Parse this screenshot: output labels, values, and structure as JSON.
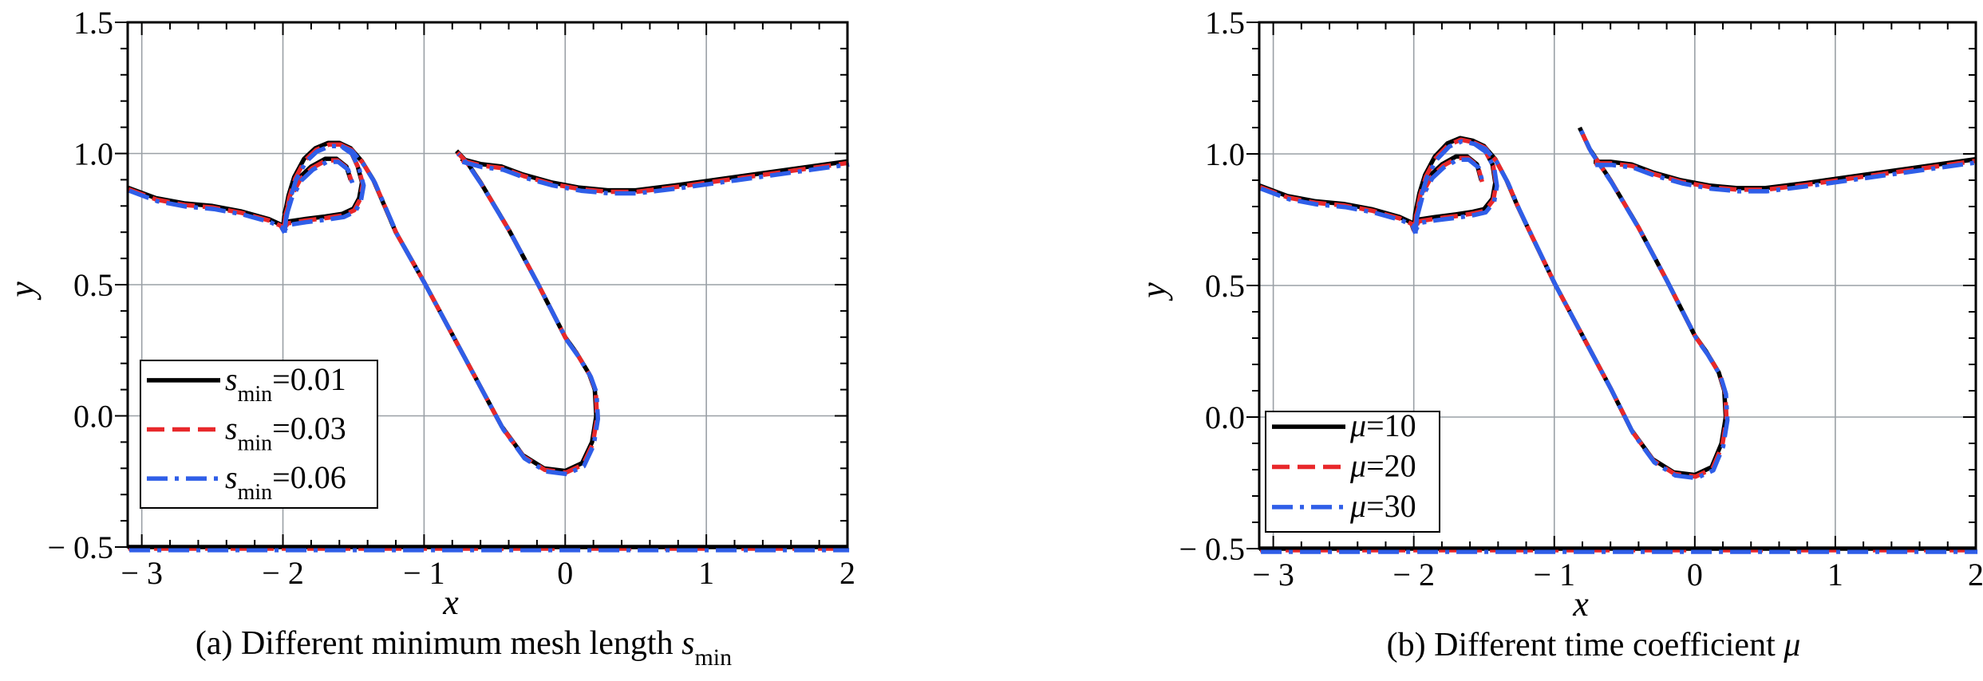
{
  "chart_data": [
    {
      "type": "line",
      "panel": "a",
      "caption_prefix": "(a) Different minimum mesh length ",
      "caption_symbol": "s",
      "caption_subscript": "min",
      "xlabel": "x",
      "ylabel": "y",
      "xlim": [
        -3.1,
        2.0
      ],
      "ylim": [
        -0.5,
        1.5
      ],
      "xticks": [
        -3,
        -2,
        -1,
        0,
        1,
        2
      ],
      "xtick_labels": [
        "− 3",
        "− 2",
        "− 1",
        "0",
        "1",
        "2"
      ],
      "yticks": [
        -0.5,
        0.0,
        0.5,
        1.0,
        1.5
      ],
      "ytick_labels": [
        "− 0.5",
        "0.0",
        "0.5",
        "1.0",
        "1.5"
      ],
      "grid": true,
      "legend_position": "lower-left",
      "series": [
        {
          "name_symbol": "s",
          "name_sub": "min",
          "name_value": "=0.01",
          "color": "#000000",
          "style": "solid"
        },
        {
          "name_symbol": "s",
          "name_sub": "min",
          "name_value": "=0.03",
          "color": "#e8282b",
          "style": "dash"
        },
        {
          "name_symbol": "s",
          "name_sub": "min",
          "name_value": "=0.06",
          "color": "#2f5ee8",
          "style": "dashdot"
        }
      ],
      "curves": {
        "surface_main": [
          [
            -3.1,
            0.87
          ],
          [
            -2.9,
            0.83
          ],
          [
            -2.7,
            0.81
          ],
          [
            -2.5,
            0.8
          ],
          [
            -2.3,
            0.78
          ],
          [
            -2.1,
            0.75
          ],
          [
            -2.02,
            0.73
          ],
          [
            -2.0,
            0.71
          ]
        ],
        "loop_outer": [
          [
            -2.0,
            0.71
          ],
          [
            -1.99,
            0.76
          ],
          [
            -1.96,
            0.84
          ],
          [
            -1.92,
            0.91
          ],
          [
            -1.85,
            0.98
          ],
          [
            -1.77,
            1.02
          ],
          [
            -1.68,
            1.04
          ],
          [
            -1.6,
            1.04
          ],
          [
            -1.52,
            1.01
          ],
          [
            -1.47,
            0.95
          ],
          [
            -1.44,
            0.89
          ],
          [
            -1.46,
            0.83
          ],
          [
            -1.5,
            0.79
          ],
          [
            -1.58,
            0.77
          ],
          [
            -1.7,
            0.76
          ],
          [
            -1.85,
            0.75
          ],
          [
            -1.97,
            0.74
          ],
          [
            -2.0,
            0.72
          ]
        ],
        "loop_inner": [
          [
            -1.99,
            0.77
          ],
          [
            -1.95,
            0.84
          ],
          [
            -1.88,
            0.91
          ],
          [
            -1.8,
            0.95
          ],
          [
            -1.7,
            0.98
          ],
          [
            -1.62,
            0.98
          ],
          [
            -1.55,
            0.95
          ],
          [
            -1.52,
            0.9
          ]
        ],
        "jet": [
          [
            -1.6,
            1.04
          ],
          [
            -1.52,
            1.02
          ],
          [
            -1.44,
            0.97
          ],
          [
            -1.36,
            0.9
          ],
          [
            -1.28,
            0.8
          ],
          [
            -1.2,
            0.7
          ],
          [
            -1.0,
            0.51
          ],
          [
            -0.8,
            0.31
          ],
          [
            -0.6,
            0.11
          ],
          [
            -0.45,
            -0.04
          ],
          [
            -0.3,
            -0.15
          ],
          [
            -0.15,
            -0.2
          ],
          [
            0.0,
            -0.21
          ],
          [
            0.12,
            -0.18
          ],
          [
            0.19,
            -0.1
          ],
          [
            0.22,
            0.0
          ],
          [
            0.21,
            0.1
          ],
          [
            0.17,
            0.16
          ],
          [
            0.08,
            0.24
          ],
          [
            0.0,
            0.3
          ],
          [
            -0.2,
            0.51
          ],
          [
            -0.4,
            0.71
          ],
          [
            -0.6,
            0.89
          ],
          [
            -0.7,
            0.97
          ],
          [
            -0.77,
            1.01
          ]
        ],
        "surface_right": [
          [
            -0.74,
            0.98
          ],
          [
            -0.6,
            0.96
          ],
          [
            -0.45,
            0.95
          ],
          [
            -0.3,
            0.92
          ],
          [
            -0.1,
            0.89
          ],
          [
            0.1,
            0.87
          ],
          [
            0.3,
            0.86
          ],
          [
            0.5,
            0.86
          ],
          [
            0.8,
            0.88
          ],
          [
            1.2,
            0.91
          ],
          [
            1.6,
            0.94
          ],
          [
            2.0,
            0.97
          ]
        ],
        "bottom": [
          [
            -3.1,
            -0.5
          ],
          [
            2.0,
            -0.5
          ]
        ]
      }
    },
    {
      "type": "line",
      "panel": "b",
      "caption_prefix": "(b) Different time coefficient ",
      "caption_symbol": "μ",
      "caption_subscript": "",
      "xlabel": "x",
      "ylabel": "y",
      "xlim": [
        -3.1,
        2.0
      ],
      "ylim": [
        -0.5,
        1.5
      ],
      "xticks": [
        -3,
        -2,
        -1,
        0,
        1,
        2
      ],
      "xtick_labels": [
        "− 3",
        "− 2",
        "− 1",
        "0",
        "1",
        "2"
      ],
      "yticks": [
        -0.5,
        0.0,
        0.5,
        1.0,
        1.5
      ],
      "ytick_labels": [
        "− 0.5",
        "0.0",
        "0.5",
        "1.0",
        "1.5"
      ],
      "grid": true,
      "legend_position": "lower-left",
      "series": [
        {
          "name_symbol": "μ",
          "name_sub": "",
          "name_value": "=10",
          "color": "#000000",
          "style": "solid"
        },
        {
          "name_symbol": "μ",
          "name_sub": "",
          "name_value": "=20",
          "color": "#e8282b",
          "style": "dash"
        },
        {
          "name_symbol": "μ",
          "name_sub": "",
          "name_value": "=30",
          "color": "#2f5ee8",
          "style": "dashdot"
        }
      ],
      "curves": {
        "surface_main": [
          [
            -3.1,
            0.88
          ],
          [
            -2.9,
            0.84
          ],
          [
            -2.7,
            0.82
          ],
          [
            -2.5,
            0.81
          ],
          [
            -2.3,
            0.79
          ],
          [
            -2.1,
            0.76
          ],
          [
            -2.02,
            0.74
          ],
          [
            -2.0,
            0.71
          ]
        ],
        "loop_outer": [
          [
            -2.0,
            0.71
          ],
          [
            -1.99,
            0.77
          ],
          [
            -1.96,
            0.85
          ],
          [
            -1.92,
            0.92
          ],
          [
            -1.85,
            0.99
          ],
          [
            -1.76,
            1.04
          ],
          [
            -1.67,
            1.06
          ],
          [
            -1.58,
            1.05
          ],
          [
            -1.5,
            1.02
          ],
          [
            -1.44,
            0.96
          ],
          [
            -1.42,
            0.89
          ],
          [
            -1.44,
            0.83
          ],
          [
            -1.5,
            0.79
          ],
          [
            -1.58,
            0.78
          ],
          [
            -1.7,
            0.77
          ],
          [
            -1.85,
            0.76
          ],
          [
            -1.97,
            0.75
          ],
          [
            -2.0,
            0.72
          ]
        ],
        "loop_inner": [
          [
            -1.99,
            0.77
          ],
          [
            -1.95,
            0.85
          ],
          [
            -1.88,
            0.92
          ],
          [
            -1.8,
            0.96
          ],
          [
            -1.7,
            0.99
          ],
          [
            -1.62,
            0.99
          ],
          [
            -1.55,
            0.96
          ],
          [
            -1.52,
            0.9
          ]
        ],
        "jet": [
          [
            -1.58,
            1.05
          ],
          [
            -1.5,
            1.03
          ],
          [
            -1.42,
            0.98
          ],
          [
            -1.34,
            0.9
          ],
          [
            -1.26,
            0.8
          ],
          [
            -1.18,
            0.71
          ],
          [
            -1.0,
            0.51
          ],
          [
            -0.8,
            0.31
          ],
          [
            -0.6,
            0.11
          ],
          [
            -0.45,
            -0.05
          ],
          [
            -0.3,
            -0.16
          ],
          [
            -0.15,
            -0.21
          ],
          [
            0.0,
            -0.22
          ],
          [
            0.12,
            -0.19
          ],
          [
            0.19,
            -0.1
          ],
          [
            0.22,
            0.0
          ],
          [
            0.21,
            0.1
          ],
          [
            0.17,
            0.17
          ],
          [
            0.08,
            0.25
          ],
          [
            0.0,
            0.31
          ],
          [
            -0.2,
            0.52
          ],
          [
            -0.4,
            0.72
          ],
          [
            -0.6,
            0.9
          ],
          [
            -0.75,
            1.02
          ],
          [
            -0.82,
            1.1
          ]
        ],
        "surface_right": [
          [
            -0.72,
            0.97
          ],
          [
            -0.6,
            0.97
          ],
          [
            -0.45,
            0.96
          ],
          [
            -0.3,
            0.93
          ],
          [
            -0.1,
            0.9
          ],
          [
            0.1,
            0.88
          ],
          [
            0.3,
            0.87
          ],
          [
            0.5,
            0.87
          ],
          [
            0.8,
            0.89
          ],
          [
            1.2,
            0.92
          ],
          [
            1.6,
            0.95
          ],
          [
            2.0,
            0.98
          ]
        ],
        "bottom": [
          [
            -3.1,
            -0.5
          ],
          [
            2.0,
            -0.5
          ]
        ]
      }
    }
  ]
}
